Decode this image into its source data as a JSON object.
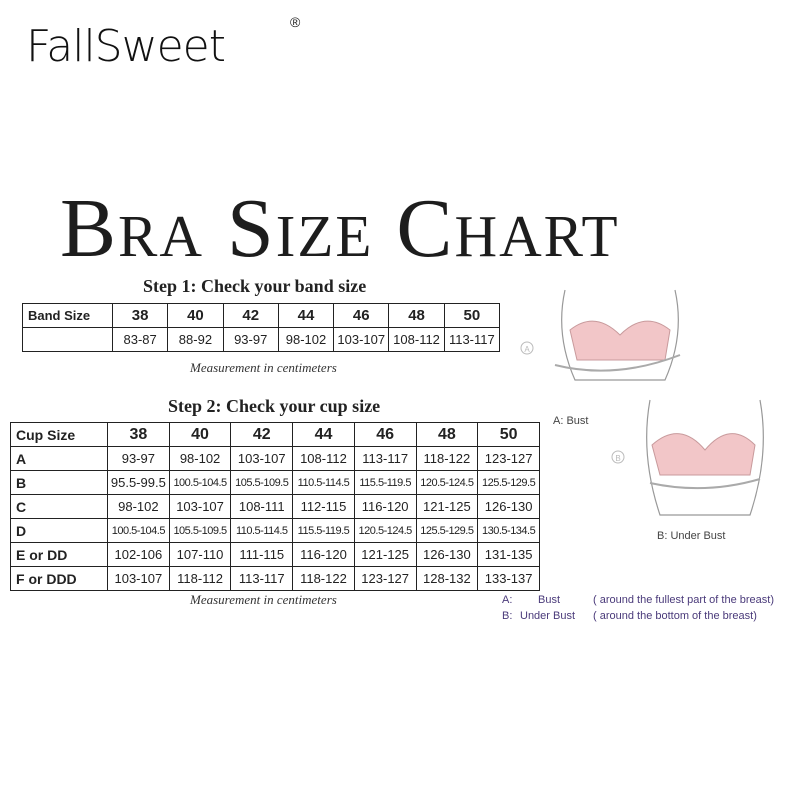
{
  "brand": {
    "logo": "FallSweet",
    "registered": "®"
  },
  "title": "Bra Size Chart",
  "step1": {
    "heading": "Step 1: Check your band size",
    "row_label": "Band Size",
    "sizes": [
      "38",
      "40",
      "42",
      "44",
      "46",
      "48",
      "50"
    ],
    "values": [
      "83-87",
      "88-92",
      "93-97",
      "98-102",
      "103-107",
      "108-112",
      "113-117"
    ],
    "note": "Measurement in centimeters"
  },
  "step2": {
    "heading": "Step 2: Check your cup size",
    "header_label": "Cup Size",
    "sizes": [
      "38",
      "40",
      "42",
      "44",
      "46",
      "48",
      "50"
    ],
    "rows": [
      {
        "cup": "A",
        "values": [
          "93-97",
          "98-102",
          "103-107",
          "108-112",
          "113-117",
          "118-122",
          "123-127"
        ]
      },
      {
        "cup": "B",
        "values": [
          "95.5-99.5",
          "100.5-104.5",
          "105.5-109.5",
          "110.5-114.5",
          "115.5-119.5",
          "120.5-124.5",
          "125.5-129.5"
        ]
      },
      {
        "cup": "C",
        "values": [
          "98-102",
          "103-107",
          "108-111",
          "112-115",
          "116-120",
          "121-125",
          "126-130"
        ]
      },
      {
        "cup": "D",
        "values": [
          "100.5-104.5",
          "105.5-109.5",
          "110.5-114.5",
          "115.5-119.5",
          "120.5-124.5",
          "125.5-129.5",
          "130.5-134.5"
        ]
      },
      {
        "cup": "E or DD",
        "values": [
          "102-106",
          "107-110",
          "111-115",
          "116-120",
          "121-125",
          "126-130",
          "131-135"
        ]
      },
      {
        "cup": "F or DDD",
        "values": [
          "103-107",
          "118-112",
          "113-117",
          "118-122",
          "123-127",
          "128-132",
          "133-137"
        ]
      }
    ],
    "note": "Measurement in centimeters"
  },
  "illustrations": {
    "a_label": "A: Bust",
    "b_label": "B: Under Bust",
    "a_marker": "A",
    "b_marker": "B",
    "bra_color": "#f2c6c8"
  },
  "footnotes": [
    {
      "key": "A:",
      "term": "Bust",
      "desc": "( around the fullest part of the breast)"
    },
    {
      "key": "B:",
      "term": "Under Bust",
      "desc": "( around the bottom of the breast)"
    }
  ]
}
